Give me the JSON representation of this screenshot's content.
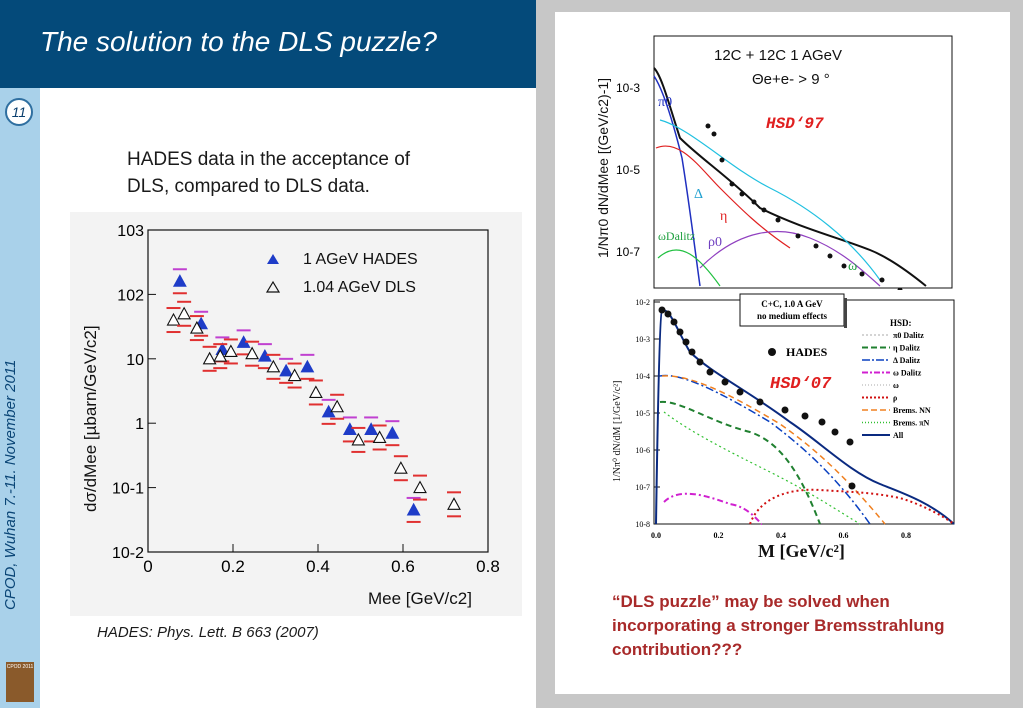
{
  "slide": {
    "title": "The solution to the DLS puzzle?",
    "page_number": "11",
    "sidebar_text": "CPOD, Wuhan 7.-11. November 2011",
    "logo_text": "CPOD 2011",
    "description_lines": [
      "HADES data in the acceptance of",
      "DLS, compared to DLS data."
    ],
    "citation": "HADES: Phys. Lett. B 663 (2007)",
    "conclusion": "“DLS puzzle” may be solved when incorporating a stronger Bremsstrahlung contribution???"
  },
  "colors": {
    "title_bar": "#044a7a",
    "sidebar": "#a9d1ea",
    "hades": "#1e3cc8",
    "error": "#e03030",
    "conclusion": "#a82a2a"
  },
  "chart_data": [
    {
      "type": "scatter",
      "log_y": true,
      "xlim": [
        0,
        0.8
      ],
      "ylim": [
        0.01,
        1000
      ],
      "x_ticks": [
        "0",
        "0.2",
        "0.4",
        "0.6",
        "0.8"
      ],
      "y_ticks": [
        "10-2",
        "10-1",
        "1",
        "10",
        "102",
        "103"
      ],
      "xlabel": "Mee  [GeV/c2]",
      "ylabel": "dσ/dMee  [µbarn/GeV/c2]",
      "legend": [
        "1 AGeV   HADES",
        "1.04 AGeV   DLS"
      ],
      "series": [
        {
          "name": "1 AGeV   HADES",
          "x": [
            0.075,
            0.125,
            0.175,
            0.225,
            0.275,
            0.325,
            0.375,
            0.425,
            0.475,
            0.525,
            0.575,
            0.625
          ],
          "y": [
            160,
            35,
            14,
            18,
            11,
            6.5,
            7.5,
            1.5,
            0.8,
            0.8,
            0.7,
            0.045
          ]
        },
        {
          "name": "1.04 AGeV   DLS",
          "x": [
            0.06,
            0.085,
            0.115,
            0.145,
            0.17,
            0.195,
            0.245,
            0.295,
            0.345,
            0.395,
            0.445,
            0.495,
            0.545,
            0.595,
            0.64,
            0.72
          ],
          "y": [
            40,
            50,
            30,
            10,
            11,
            13,
            12,
            7.5,
            5.5,
            3,
            1.8,
            0.55,
            0.6,
            0.2,
            0.1,
            0.055
          ]
        }
      ]
    },
    {
      "type": "line",
      "title": "12C + 12C  1 AGeV",
      "subtitle": "Θe+e- > 9 °",
      "model_label": "HSD‘97",
      "ylabel": "1/Nπ0 dN/dMee [(GeV/c2)-1]",
      "y_ticks": [
        "10-3",
        "10-5",
        "10-7"
      ],
      "curve_labels": [
        "π0",
        "Δ",
        "η",
        "ρ0",
        "ωDalitz",
        "ω"
      ]
    },
    {
      "type": "line",
      "box_label_lines": [
        "C+C,  1.0 A GeV",
        "no medium effects"
      ],
      "model_label": "HSD‘07",
      "data_label": "HADES",
      "xlabel": "M [GeV/c²]",
      "ylabel": "1/Nπ⁰ dN/dM  [1/GeV/c²]",
      "x_ticks": [
        "0.0",
        "0.2",
        "0.4",
        "0.6",
        "0.8"
      ],
      "y_ticks": [
        "10-2",
        "10-3",
        "10-4",
        "10-5",
        "10-6",
        "10-7",
        "10-8"
      ],
      "legend_title": "HSD:",
      "legend": [
        "π0 Dalitz",
        "η Dalitz",
        "Δ Dalitz",
        "ω Dalitz",
        "ω",
        "ρ",
        "Brems. NN",
        "Brems. πN",
        "All"
      ]
    }
  ]
}
